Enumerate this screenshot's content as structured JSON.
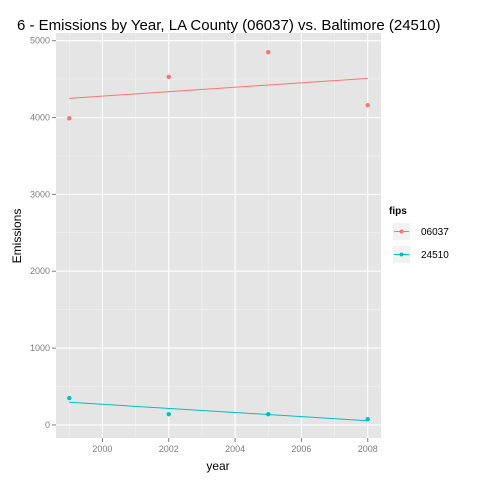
{
  "chart_data": {
    "type": "scatter",
    "title": "6 - Emissions by Year, LA County (06037) vs. Baltimore (24510)",
    "xlabel": "year",
    "ylabel": "Emissions",
    "xlim": [
      1998.6,
      2008.4
    ],
    "ylim": [
      -170,
      5100
    ],
    "xticks": [
      2000,
      2002,
      2004,
      2006,
      2008
    ],
    "yticks": [
      0,
      1000,
      2000,
      3000,
      4000,
      5000
    ],
    "grid": true,
    "legend": {
      "title": "fips",
      "placement": "right"
    },
    "series": [
      {
        "name": "06037",
        "color": "#F8766D",
        "x": [
          1999,
          2002,
          2005,
          2008
        ],
        "y": [
          3990,
          4530,
          4850,
          4160
        ],
        "trend": [
          [
            1999,
            4250
          ],
          [
            2008,
            4510
          ]
        ]
      },
      {
        "name": "24510",
        "color": "#00BFC4",
        "x": [
          1999,
          2002,
          2005,
          2008
        ],
        "y": [
          350,
          140,
          140,
          75
        ],
        "trend": [
          [
            1999,
            295
          ],
          [
            2008,
            55
          ]
        ]
      }
    ]
  }
}
